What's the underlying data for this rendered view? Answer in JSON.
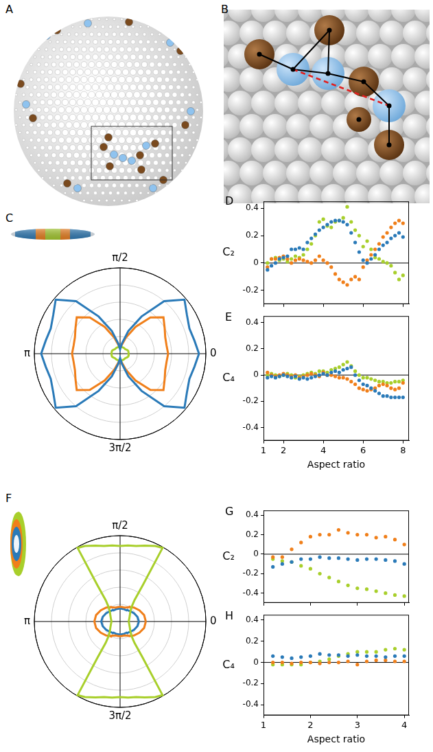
{
  "diagram_panels": [
    "A",
    "B"
  ],
  "chart_data": [
    {
      "panel": "C",
      "type": "polar_line",
      "line_style": "solid",
      "rlim": [
        0,
        1
      ],
      "rticks": [
        0.2,
        0.4,
        0.6,
        0.8,
        1
      ],
      "theta_ticks": [
        {
          "value": 0,
          "label": "0"
        },
        {
          "value": 90,
          "label": "π/2"
        },
        {
          "value": 180,
          "label": "π"
        },
        {
          "value": 270,
          "label": "3π/2"
        }
      ],
      "theta": [
        0,
        10,
        20,
        30,
        40,
        50,
        60,
        70,
        80,
        90,
        100,
        110,
        120,
        130,
        140,
        150,
        160,
        170,
        180,
        190,
        200,
        210,
        220,
        230,
        240,
        250,
        260,
        270,
        280,
        290,
        300,
        310,
        320,
        330,
        340,
        350,
        360
      ],
      "series": [
        {
          "color": "#2a7ab8",
          "values": [
            0.92,
            0.88,
            0.86,
            0.9,
            0.98,
            0.8,
            0.5,
            0.28,
            0.12,
            0.05,
            0.12,
            0.28,
            0.5,
            0.8,
            0.98,
            0.9,
            0.86,
            0.88,
            0.92,
            0.88,
            0.86,
            0.9,
            0.98,
            0.8,
            0.5,
            0.28,
            0.12,
            0.05,
            0.12,
            0.28,
            0.5,
            0.8,
            0.98,
            0.9,
            0.86,
            0.88,
            0.92
          ]
        },
        {
          "color": "#f07f1a",
          "values": [
            0.56,
            0.55,
            0.56,
            0.6,
            0.66,
            0.55,
            0.36,
            0.2,
            0.1,
            0.07,
            0.1,
            0.2,
            0.36,
            0.55,
            0.66,
            0.6,
            0.56,
            0.55,
            0.56,
            0.55,
            0.56,
            0.6,
            0.66,
            0.55,
            0.36,
            0.2,
            0.1,
            0.07,
            0.1,
            0.2,
            0.36,
            0.55,
            0.66,
            0.6,
            0.56,
            0.55,
            0.56
          ]
        },
        {
          "color": "#a8cf2b",
          "values": [
            0.1,
            0.1,
            0.1,
            0.09,
            0.08,
            0.08,
            0.08,
            0.08,
            0.08,
            0.08,
            0.08,
            0.08,
            0.08,
            0.08,
            0.08,
            0.09,
            0.1,
            0.1,
            0.1,
            0.1,
            0.1,
            0.09,
            0.08,
            0.08,
            0.08,
            0.08,
            0.08,
            0.08,
            0.08,
            0.08,
            0.08,
            0.08,
            0.08,
            0.09,
            0.1,
            0.1,
            0.1
          ]
        }
      ]
    },
    {
      "panel": "D",
      "type": "scatter",
      "marker": "circle",
      "grid": false,
      "tick_labels": "y",
      "ylabel": "C₂",
      "reference_line": 0,
      "xlim": [
        1,
        8.3
      ],
      "xticks": [
        1,
        2,
        4,
        6,
        8
      ],
      "ylim": [
        -0.3,
        0.45
      ],
      "yticks": [
        -0.2,
        0,
        0.2,
        0.4
      ],
      "x": [
        1.2,
        1.4,
        1.6,
        1.8,
        2.0,
        2.2,
        2.4,
        2.6,
        2.8,
        3.0,
        3.2,
        3.4,
        3.6,
        3.8,
        4.0,
        4.2,
        4.4,
        4.6,
        4.8,
        5.0,
        5.2,
        5.4,
        5.6,
        5.8,
        6.0,
        6.2,
        6.4,
        6.6,
        6.8,
        7.0,
        7.2,
        7.4,
        7.6,
        7.8,
        8.0
      ],
      "series": [
        {
          "color": "#2a7ab8",
          "values": [
            -0.05,
            -0.02,
            0.0,
            0.03,
            0.04,
            0.05,
            0.1,
            0.1,
            0.11,
            0.1,
            0.15,
            0.18,
            0.21,
            0.24,
            0.26,
            0.28,
            0.3,
            0.31,
            0.31,
            0.3,
            0.28,
            0.22,
            0.15,
            0.08,
            0.02,
            0.0,
            0.03,
            0.06,
            0.1,
            0.13,
            0.15,
            0.18,
            0.2,
            0.22,
            0.19
          ]
        },
        {
          "color": "#f07f1a",
          "values": [
            -0.03,
            0.03,
            0.03,
            0.04,
            0.05,
            0.03,
            0.0,
            0.02,
            0.03,
            0.02,
            0.01,
            0.0,
            0.02,
            0.05,
            0.02,
            0.0,
            -0.03,
            -0.08,
            -0.12,
            -0.14,
            -0.16,
            -0.12,
            -0.1,
            -0.12,
            -0.03,
            0.02,
            0.06,
            0.1,
            0.14,
            0.19,
            0.22,
            0.26,
            0.29,
            0.31,
            0.29
          ]
        },
        {
          "color": "#a8cf2b",
          "values": [
            0.0,
            0.03,
            0.04,
            0.02,
            0.03,
            0.01,
            0.03,
            0.05,
            0.04,
            0.06,
            0.1,
            0.14,
            0.2,
            0.3,
            0.32,
            0.27,
            0.26,
            0.3,
            0.31,
            0.33,
            0.41,
            0.3,
            0.24,
            0.2,
            0.12,
            0.16,
            0.1,
            0.04,
            0.03,
            0.01,
            0.0,
            -0.02,
            -0.07,
            -0.12,
            -0.09
          ]
        }
      ]
    },
    {
      "panel": "E",
      "type": "scatter",
      "marker": "circle",
      "grid": false,
      "ylabel": "C₄",
      "xlabel": "Aspect ratio",
      "reference_line": 0,
      "xlim": [
        1,
        8.3
      ],
      "xticks": [
        1,
        2,
        4,
        6,
        8
      ],
      "ylim": [
        -0.5,
        0.45
      ],
      "yticks": [
        -0.4,
        -0.2,
        0,
        0.2,
        0.4
      ],
      "x": [
        1.2,
        1.4,
        1.6,
        1.8,
        2.0,
        2.2,
        2.4,
        2.6,
        2.8,
        3.0,
        3.2,
        3.4,
        3.6,
        3.8,
        4.0,
        4.2,
        4.4,
        4.6,
        4.8,
        5.0,
        5.2,
        5.4,
        5.6,
        5.8,
        6.0,
        6.2,
        6.4,
        6.6,
        6.8,
        7.0,
        7.2,
        7.4,
        7.6,
        7.8,
        8.0
      ],
      "series": [
        {
          "color": "#2a7ab8",
          "values": [
            -0.02,
            -0.01,
            -0.02,
            -0.01,
            0.0,
            -0.01,
            -0.02,
            -0.01,
            -0.03,
            -0.02,
            -0.03,
            -0.02,
            -0.01,
            0.0,
            0.01,
            0.0,
            0.02,
            0.03,
            0.02,
            0.04,
            0.05,
            0.06,
            0.0,
            -0.04,
            -0.07,
            -0.08,
            -0.1,
            -0.12,
            -0.14,
            -0.16,
            -0.16,
            -0.17,
            -0.17,
            -0.17,
            -0.17
          ]
        },
        {
          "color": "#f07f1a",
          "values": [
            0.02,
            0.0,
            -0.01,
            0.0,
            0.01,
            0.0,
            -0.01,
            0.0,
            -0.02,
            -0.01,
            0.0,
            0.01,
            0.0,
            -0.01,
            0.02,
            0.0,
            0.0,
            -0.01,
            -0.02,
            -0.02,
            -0.03,
            -0.05,
            -0.07,
            -0.1,
            -0.11,
            -0.12,
            -0.11,
            -0.1,
            -0.08,
            -0.07,
            -0.08,
            -0.1,
            -0.11,
            -0.1,
            -0.06
          ]
        },
        {
          "color": "#a8cf2b",
          "values": [
            0.0,
            0.01,
            0.0,
            -0.01,
            0.0,
            0.01,
            0.0,
            -0.02,
            -0.01,
            0.0,
            0.01,
            0.02,
            0.01,
            0.03,
            0.03,
            0.02,
            0.04,
            0.05,
            0.06,
            0.08,
            0.1,
            0.07,
            0.03,
            0.0,
            -0.02,
            -0.02,
            -0.03,
            -0.04,
            -0.05,
            -0.05,
            -0.06,
            -0.06,
            -0.05,
            -0.05,
            -0.04
          ]
        }
      ]
    },
    {
      "panel": "F",
      "type": "polar_line",
      "line_style": "solid",
      "rlim": [
        0,
        1
      ],
      "rticks": [
        0.2,
        0.4,
        0.6,
        0.8,
        1
      ],
      "theta_ticks": [
        {
          "value": 0,
          "label": "0"
        },
        {
          "value": 90,
          "label": "π/2"
        },
        {
          "value": 180,
          "label": "π"
        },
        {
          "value": 270,
          "label": "3π/2"
        }
      ],
      "theta": [
        0,
        15,
        30,
        45,
        52,
        56,
        58,
        60,
        65,
        72,
        78,
        84,
        90,
        96,
        102,
        108,
        115,
        120,
        122,
        124,
        128,
        135,
        150,
        165,
        180,
        195,
        210,
        225,
        232,
        236,
        238,
        240,
        245,
        252,
        258,
        264,
        270,
        276,
        282,
        288,
        295,
        300,
        302,
        304,
        308,
        315,
        330,
        345,
        360
      ],
      "series": [
        {
          "color": "#a8cf2b",
          "values": [
            0.1,
            0.11,
            0.13,
            0.17,
            0.22,
            0.3,
            0.5,
            0.99,
            0.97,
            0.93,
            0.9,
            0.89,
            0.88,
            0.89,
            0.9,
            0.93,
            0.97,
            0.99,
            0.5,
            0.3,
            0.22,
            0.17,
            0.13,
            0.11,
            0.1,
            0.11,
            0.13,
            0.17,
            0.22,
            0.3,
            0.5,
            0.99,
            0.97,
            0.93,
            0.9,
            0.89,
            0.88,
            0.89,
            0.9,
            0.93,
            0.97,
            0.99,
            0.5,
            0.3,
            0.22,
            0.17,
            0.13,
            0.11,
            0.1
          ]
        },
        {
          "color": "#f07f1a",
          "values": [
            0.3,
            0.29,
            0.26,
            0.23,
            0.21,
            0.2,
            0.2,
            0.19,
            0.18,
            0.17,
            0.17,
            0.17,
            0.17,
            0.17,
            0.17,
            0.17,
            0.18,
            0.19,
            0.2,
            0.2,
            0.21,
            0.23,
            0.26,
            0.29,
            0.3,
            0.29,
            0.26,
            0.23,
            0.21,
            0.2,
            0.2,
            0.19,
            0.18,
            0.17,
            0.17,
            0.17,
            0.17,
            0.17,
            0.17,
            0.17,
            0.18,
            0.19,
            0.2,
            0.2,
            0.21,
            0.23,
            0.26,
            0.29,
            0.3
          ]
        },
        {
          "color": "#2a7ab8",
          "values": [
            0.22,
            0.21,
            0.19,
            0.17,
            0.16,
            0.16,
            0.16,
            0.15,
            0.15,
            0.15,
            0.15,
            0.15,
            0.15,
            0.15,
            0.15,
            0.15,
            0.15,
            0.15,
            0.16,
            0.16,
            0.16,
            0.17,
            0.19,
            0.21,
            0.22,
            0.21,
            0.19,
            0.17,
            0.16,
            0.16,
            0.16,
            0.15,
            0.15,
            0.15,
            0.15,
            0.15,
            0.15,
            0.15,
            0.15,
            0.15,
            0.15,
            0.15,
            0.16,
            0.16,
            0.16,
            0.17,
            0.19,
            0.21,
            0.22
          ]
        }
      ]
    },
    {
      "panel": "G",
      "type": "scatter",
      "marker": "circle",
      "grid": false,
      "tick_labels": "y",
      "ylabel": "C₂",
      "reference_line": 0,
      "xlim": [
        1,
        4.1
      ],
      "xticks": [
        1,
        2,
        3,
        4
      ],
      "ylim": [
        -0.5,
        0.45
      ],
      "yticks": [
        -0.4,
        -0.2,
        0,
        0.2,
        0.4
      ],
      "x": [
        1.2,
        1.4,
        1.6,
        1.8,
        2.0,
        2.2,
        2.4,
        2.6,
        2.8,
        3.0,
        3.2,
        3.4,
        3.6,
        3.8,
        4.0
      ],
      "series": [
        {
          "color": "#f07f1a",
          "values": [
            -0.03,
            -0.03,
            0.05,
            0.12,
            0.18,
            0.2,
            0.2,
            0.25,
            0.22,
            0.2,
            0.2,
            0.17,
            0.18,
            0.15,
            0.1
          ]
        },
        {
          "color": "#2a7ab8",
          "values": [
            -0.13,
            -0.1,
            -0.08,
            -0.05,
            -0.05,
            -0.03,
            -0.04,
            -0.04,
            -0.05,
            -0.06,
            -0.05,
            -0.05,
            -0.06,
            -0.07,
            -0.1
          ]
        },
        {
          "color": "#a8cf2b",
          "values": [
            -0.05,
            -0.07,
            -0.08,
            -0.12,
            -0.15,
            -0.2,
            -0.24,
            -0.28,
            -0.32,
            -0.35,
            -0.36,
            -0.38,
            -0.4,
            -0.42,
            -0.43
          ]
        }
      ]
    },
    {
      "panel": "H",
      "type": "scatter",
      "marker": "circle",
      "grid": false,
      "ylabel": "C₄",
      "xlabel": "Aspect ratio",
      "reference_line": 0,
      "xlim": [
        1,
        4.1
      ],
      "xticks": [
        1,
        2,
        3,
        4
      ],
      "ylim": [
        -0.5,
        0.45
      ],
      "yticks": [
        -0.4,
        -0.2,
        0,
        0.2,
        0.4
      ],
      "x": [
        1.2,
        1.4,
        1.6,
        1.8,
        2.0,
        2.2,
        2.4,
        2.6,
        2.8,
        3.0,
        3.2,
        3.4,
        3.6,
        3.8,
        4.0
      ],
      "series": [
        {
          "color": "#2a7ab8",
          "values": [
            0.06,
            0.05,
            0.04,
            0.05,
            0.06,
            0.08,
            0.07,
            0.07,
            0.06,
            0.07,
            0.06,
            0.06,
            0.05,
            0.06,
            0.06
          ]
        },
        {
          "color": "#f07f1a",
          "values": [
            0.0,
            0.0,
            -0.01,
            0.0,
            0.0,
            -0.01,
            0.0,
            0.0,
            0.01,
            -0.02,
            0.01,
            0.02,
            0.02,
            0.01,
            0.01
          ]
        },
        {
          "color": "#a8cf2b",
          "values": [
            -0.02,
            -0.02,
            -0.02,
            -0.02,
            0.0,
            0.01,
            0.03,
            0.06,
            0.08,
            0.1,
            0.1,
            0.1,
            0.12,
            0.13,
            0.12
          ]
        }
      ]
    }
  ]
}
